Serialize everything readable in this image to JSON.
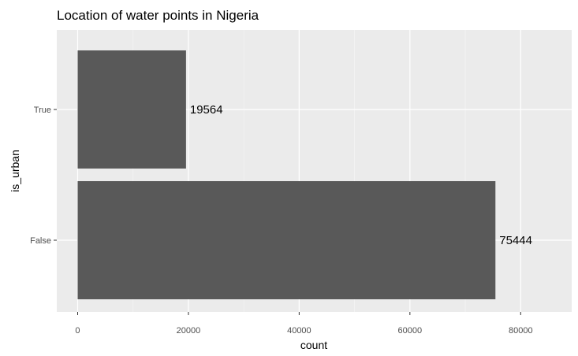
{
  "chart_data": {
    "type": "bar",
    "orientation": "horizontal",
    "title": "Location of water points in Nigeria",
    "xlabel": "count",
    "ylabel": "is_urban",
    "categories": [
      "True",
      "False"
    ],
    "values": [
      19564,
      75444
    ],
    "data_labels": [
      "19564",
      "75444"
    ],
    "x_ticks": [
      0,
      20000,
      40000,
      60000,
      80000
    ],
    "x_tick_labels": [
      "0",
      "20000",
      "40000",
      "60000",
      "80000"
    ],
    "xlim": [
      -3772,
      89216
    ],
    "grid": true,
    "legend": "none",
    "colors": {
      "bar": "#595959",
      "panel_background": "#ebebeb",
      "grid_major": "#ffffff",
      "grid_minor": "#f5f5f5",
      "tick_text": "#4d4d4d"
    }
  }
}
